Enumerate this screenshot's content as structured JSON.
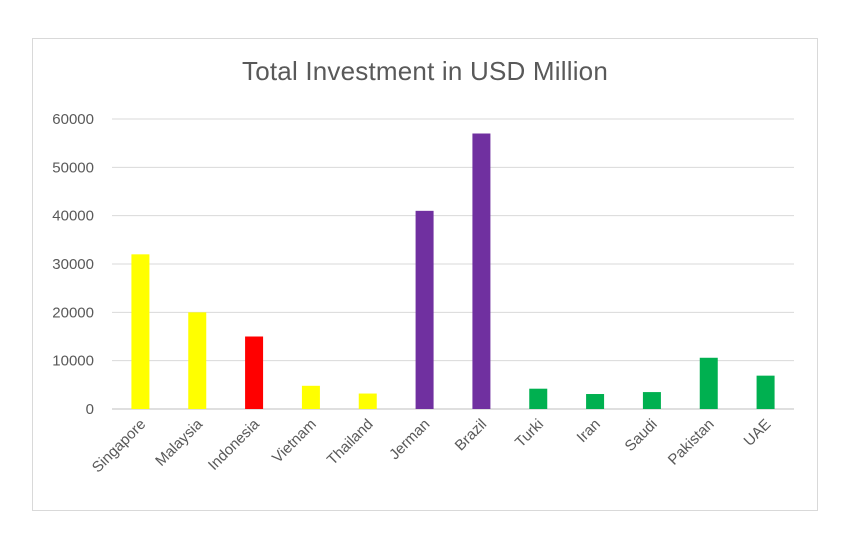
{
  "chart_data": {
    "type": "bar",
    "title": "Total Investment in USD Million",
    "xlabel": "",
    "ylabel": "",
    "ylim": [
      0,
      60000
    ],
    "yticks": [
      0,
      10000,
      20000,
      30000,
      40000,
      50000,
      60000
    ],
    "ytick_labels": [
      "0",
      "10000",
      "20000",
      "30000",
      "40000",
      "50000",
      "60000"
    ],
    "grid": true,
    "legend": "none",
    "categories": [
      "Singapore",
      "Malaysia",
      "Indonesia",
      "Vietnam",
      "Thailand",
      "Jerman",
      "Brazil",
      "Turki",
      "Iran",
      "Saudi",
      "Pakistan",
      "UAE"
    ],
    "values": [
      32000,
      20000,
      15000,
      4800,
      3200,
      41000,
      57000,
      4200,
      3100,
      3500,
      10600,
      6900
    ],
    "colors": [
      "#ffff00",
      "#ffff00",
      "#ff0000",
      "#ffff00",
      "#ffff00",
      "#7030a0",
      "#7030a0",
      "#00b050",
      "#00b050",
      "#00b050",
      "#00b050",
      "#00b050"
    ]
  }
}
